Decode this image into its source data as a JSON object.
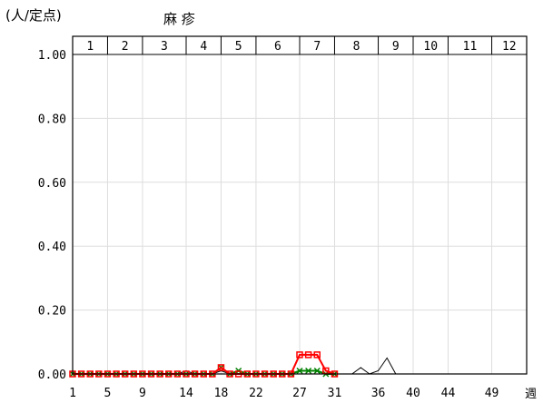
{
  "chart_data": {
    "type": "line",
    "title": "麻 疹",
    "ylabel": "(人/定点)",
    "xlabel": "週",
    "ylim": [
      0,
      1.0
    ],
    "xlim": [
      1,
      53
    ],
    "y_ticks": [
      "1.00",
      "0.80",
      "0.60",
      "0.40",
      "0.20",
      "0.00"
    ],
    "y_tick_values": [
      1.0,
      0.8,
      0.6,
      0.4,
      0.2,
      0.0
    ],
    "x_ticks": [
      "1",
      "5",
      "9",
      "14",
      "18",
      "22",
      "27",
      "31",
      "36",
      "40",
      "44",
      "49"
    ],
    "x_tick_values": [
      1,
      5,
      9,
      14,
      18,
      22,
      27,
      31,
      36,
      40,
      44,
      49
    ],
    "months": [
      {
        "label": "1",
        "start": 1,
        "end": 5
      },
      {
        "label": "2",
        "start": 5,
        "end": 9
      },
      {
        "label": "3",
        "start": 9,
        "end": 14
      },
      {
        "label": "4",
        "start": 14,
        "end": 18
      },
      {
        "label": "5",
        "start": 18,
        "end": 22
      },
      {
        "label": "6",
        "start": 22,
        "end": 27
      },
      {
        "label": "7",
        "start": 27,
        "end": 31
      },
      {
        "label": "8",
        "start": 31,
        "end": 36
      },
      {
        "label": "9",
        "start": 36,
        "end": 40
      },
      {
        "label": "10",
        "start": 40,
        "end": 44
      },
      {
        "label": "11",
        "start": 44,
        "end": 49
      },
      {
        "label": "12",
        "start": 49,
        "end": 53
      }
    ],
    "grid": true,
    "series": [
      {
        "color": "#000000",
        "marker": "none",
        "x": [
          1,
          2,
          3,
          4,
          5,
          6,
          7,
          8,
          9,
          10,
          11,
          12,
          13,
          14,
          15,
          16,
          17,
          18,
          19,
          20,
          21,
          22,
          23,
          24,
          25,
          26,
          27,
          28,
          29,
          30,
          31,
          32,
          33,
          34,
          35,
          36,
          37,
          38,
          39,
          40,
          41,
          42,
          43,
          44,
          45,
          46,
          47,
          48,
          49,
          50,
          51,
          52,
          53
        ],
        "values": [
          0,
          0,
          0,
          0,
          0,
          0,
          0,
          0,
          0,
          0,
          0,
          0,
          0,
          0.01,
          0,
          0,
          0,
          0.01,
          0,
          0.01,
          0,
          0,
          0,
          0,
          0,
          0,
          0,
          0,
          0,
          0,
          0,
          0,
          0,
          0.02,
          0,
          0.01,
          0.05,
          0,
          0,
          0,
          0,
          0,
          0,
          0,
          0,
          0,
          0,
          0,
          0,
          0,
          0,
          0,
          0
        ]
      },
      {
        "color": "#008000",
        "marker": "x",
        "x": [
          1,
          2,
          3,
          4,
          5,
          6,
          7,
          8,
          9,
          10,
          11,
          12,
          13,
          14,
          15,
          16,
          17,
          18,
          19,
          20,
          21,
          22,
          23,
          24,
          25,
          26,
          27,
          28,
          29,
          30,
          31
        ],
        "values": [
          0,
          0,
          0,
          0,
          0,
          0,
          0,
          0,
          0,
          0,
          0,
          0,
          0,
          0,
          0,
          0,
          0,
          0.02,
          0,
          0.01,
          0,
          0,
          0,
          0,
          0,
          0,
          0.01,
          0.01,
          0.01,
          0,
          0
        ]
      },
      {
        "color": "#ff0000",
        "marker": "square",
        "x": [
          1,
          2,
          3,
          4,
          5,
          6,
          7,
          8,
          9,
          10,
          11,
          12,
          13,
          14,
          15,
          16,
          17,
          18,
          19,
          20,
          21,
          22,
          23,
          24,
          25,
          26,
          27,
          28,
          29,
          30,
          31
        ],
        "values": [
          0,
          0,
          0,
          0,
          0,
          0,
          0,
          0,
          0,
          0,
          0,
          0,
          0,
          0,
          0,
          0,
          0,
          0.02,
          0,
          0,
          0,
          0,
          0,
          0,
          0,
          0,
          0.06,
          0.06,
          0.06,
          0.01,
          0
        ]
      }
    ]
  }
}
